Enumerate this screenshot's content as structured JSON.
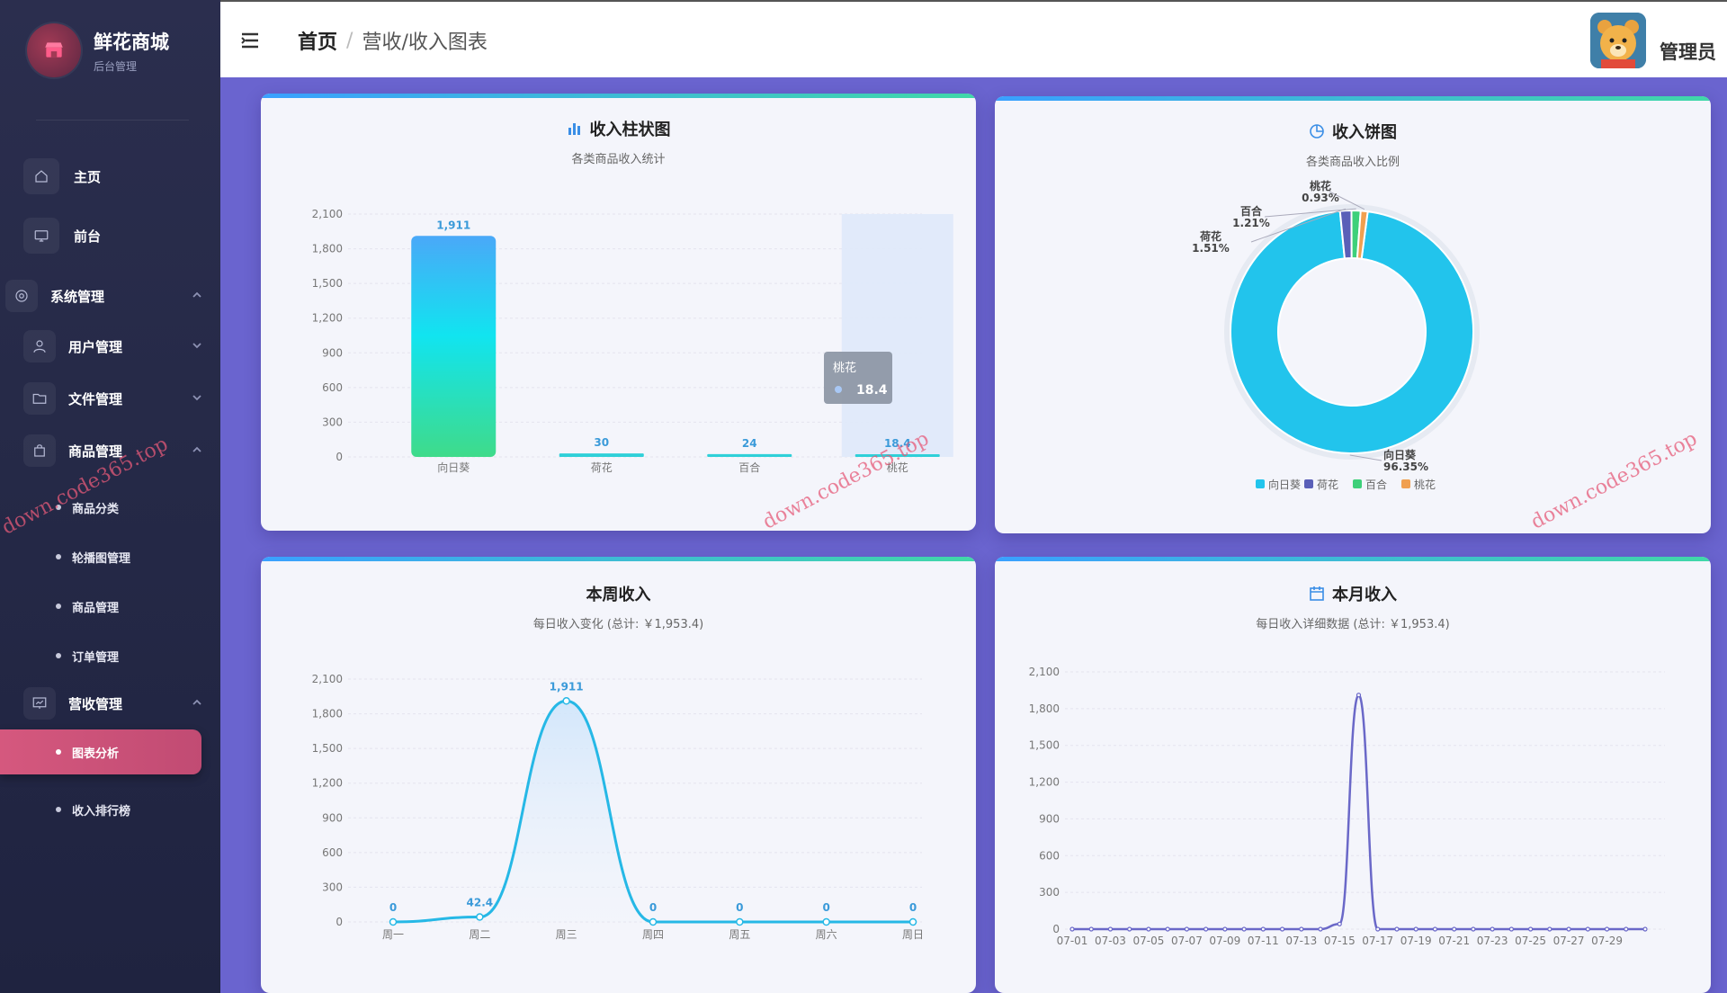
{
  "sidebar": {
    "logo_title": "鲜花商城",
    "logo_sub": "后台管理",
    "home": "主页",
    "front": "前台",
    "system": "系统管理",
    "user": "用户管理",
    "file": "文件管理",
    "goods": "商品管理",
    "goods_sub": [
      "商品分类",
      "轮播图管理",
      "商品管理",
      "订单管理"
    ],
    "revenue": "营收管理",
    "revenue_active": "图表分析",
    "revenue_rank": "收入排行榜"
  },
  "header": {
    "breadcrumb_home": "首页",
    "breadcrumb_sep": "/",
    "breadcrumb_current": "营收/收入图表",
    "user_name": "管理员"
  },
  "watermark": "down.code365.top",
  "cards": {
    "bar": {
      "title": "收入柱状图",
      "subtitle": "各类商品收入统计"
    },
    "pie": {
      "title": "收入饼图",
      "subtitle": "各类商品收入比例"
    },
    "week": {
      "title": "本周收入",
      "subtitle": "每日收入变化 (总计: ￥1,953.4)"
    },
    "month": {
      "title": "本月收入",
      "subtitle": "每日收入详细数据 (总计: ￥1,953.4)"
    }
  },
  "chart_data": [
    {
      "type": "bar",
      "categories": [
        "向日葵",
        "荷花",
        "百合",
        "桃花"
      ],
      "values": [
        1911,
        30,
        24,
        18.4
      ],
      "yticks": [
        0,
        300,
        600,
        900,
        1200,
        1500,
        1800,
        2100
      ],
      "ylim": [
        0,
        2100
      ],
      "tooltip": {
        "label": "桃花",
        "value": "18.4"
      }
    },
    {
      "type": "pie",
      "categories": [
        "向日葵",
        "荷花",
        "百合",
        "桃花"
      ],
      "values": [
        96.35,
        1.51,
        1.21,
        0.93
      ],
      "labels": [
        "向日葵 96.35%",
        "荷花 1.51%",
        "百合 1.21%",
        "桃花 0.93%"
      ],
      "colors": [
        "#22c4ec",
        "#5a5fb8",
        "#3ed07a",
        "#f0a050"
      ]
    },
    {
      "type": "line",
      "x": [
        "周一",
        "周二",
        "周三",
        "周四",
        "周五",
        "周六",
        "周日"
      ],
      "values": [
        0,
        42.4,
        1911,
        0,
        0,
        0,
        0
      ],
      "yticks": [
        0,
        300,
        600,
        900,
        1200,
        1500,
        1800,
        2100
      ],
      "ylim": [
        0,
        2100
      ]
    },
    {
      "type": "line",
      "xticks": [
        "07-01",
        "07-03",
        "07-05",
        "07-07",
        "07-09",
        "07-11",
        "07-13",
        "07-15",
        "07-17",
        "07-19",
        "07-21",
        "07-23",
        "07-25",
        "07-27",
        "07-29"
      ],
      "x": [
        "07-01",
        "07-02",
        "07-03",
        "07-04",
        "07-05",
        "07-06",
        "07-07",
        "07-08",
        "07-09",
        "07-10",
        "07-11",
        "07-12",
        "07-13",
        "07-14",
        "07-15",
        "07-16",
        "07-17",
        "07-18",
        "07-19",
        "07-20",
        "07-21",
        "07-22",
        "07-23",
        "07-24",
        "07-25",
        "07-26",
        "07-27",
        "07-28",
        "07-29",
        "07-30",
        "07-31"
      ],
      "values": [
        0,
        0,
        0,
        0,
        0,
        0,
        0,
        0,
        0,
        0,
        0,
        0,
        0,
        0,
        42.4,
        1911,
        0,
        0,
        0,
        0,
        0,
        0,
        0,
        0,
        0,
        0,
        0,
        0,
        0,
        0,
        0
      ],
      "yticks": [
        0,
        300,
        600,
        900,
        1200,
        1500,
        1800,
        2100
      ],
      "ylim": [
        0,
        2100
      ]
    }
  ]
}
